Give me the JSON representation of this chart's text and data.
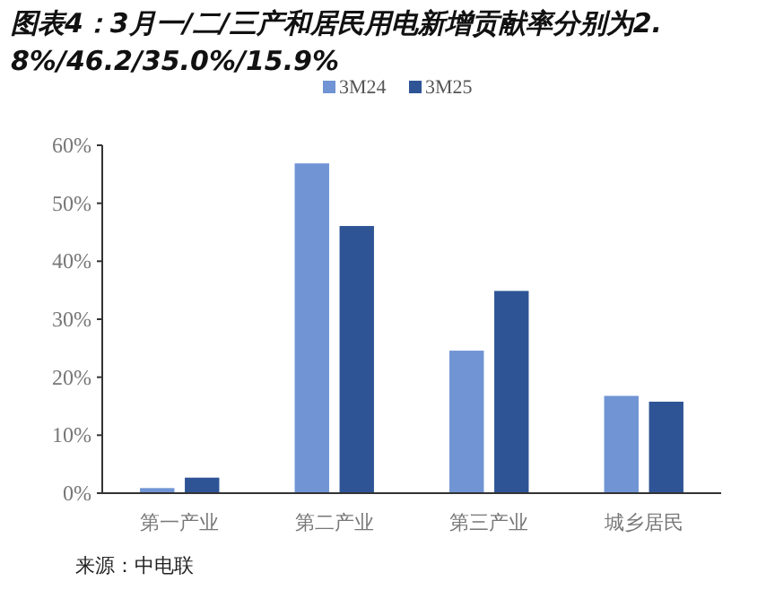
{
  "chart_data": {
    "type": "bar",
    "title": "图表4：3月一/二/三产和居民用电新增贡献率分别为2.8%/46.2/35.0%/15.9%",
    "categories": [
      "第一产业",
      "第二产业",
      "第三产业",
      "城乡居民"
    ],
    "series": [
      {
        "name": "3M24",
        "color": "#7094d4",
        "values": [
          1.0,
          57.0,
          24.7,
          16.9
        ]
      },
      {
        "name": "3M25",
        "color": "#2e5496",
        "values": [
          2.8,
          46.2,
          35.0,
          15.9
        ]
      }
    ],
    "ylim": [
      0,
      60
    ],
    "yticks": [
      {
        "value": 0,
        "label": "0%"
      },
      {
        "value": 10,
        "label": "10%"
      },
      {
        "value": 20,
        "label": "20%"
      },
      {
        "value": 30,
        "label": "30%"
      },
      {
        "value": 40,
        "label": "40%"
      },
      {
        "value": 50,
        "label": "50%"
      },
      {
        "value": 60,
        "label": "60%"
      }
    ],
    "grid": false,
    "legend": "top",
    "annotations": [
      "来源：中电联"
    ]
  }
}
